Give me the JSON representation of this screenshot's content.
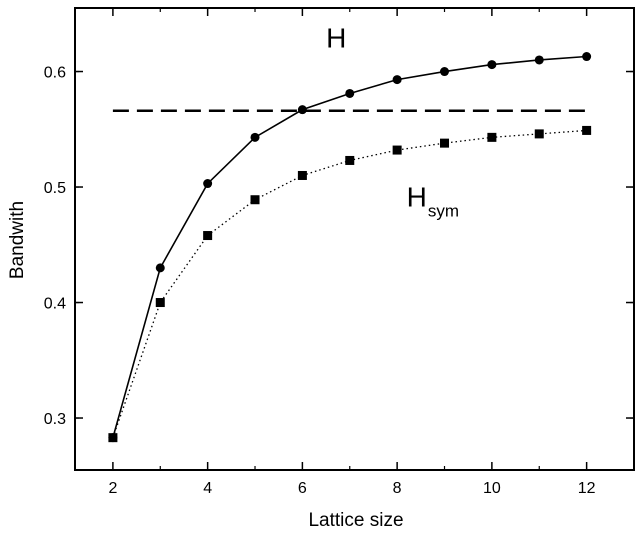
{
  "chart_data": {
    "type": "line",
    "title": "",
    "xlabel": "Lattice size",
    "ylabel": "Bandwith",
    "xlim": [
      1.2,
      13.0
    ],
    "ylim": [
      0.255,
      0.655
    ],
    "xticks": [
      2,
      4,
      6,
      8,
      10,
      12
    ],
    "xtick_labels": [
      "2",
      "4",
      "6",
      "8",
      "10",
      "12"
    ],
    "yticks": [
      0.3,
      0.4,
      0.5,
      0.6
    ],
    "ytick_labels": [
      "0.3",
      "0.4",
      "0.5",
      "0.6"
    ],
    "grid": false,
    "series": [
      {
        "marker": "circle",
        "line": "solid",
        "x": [
          2,
          3,
          4,
          5,
          6,
          7,
          8,
          9,
          10,
          11,
          12
        ],
        "y": [
          0.283,
          0.43,
          0.503,
          0.543,
          0.567,
          0.581,
          0.593,
          0.6,
          0.606,
          0.61,
          0.613
        ]
      },
      {
        "marker": "square",
        "line": "dotted",
        "x": [
          2,
          3,
          4,
          5,
          6,
          7,
          8,
          9,
          10,
          11,
          12
        ],
        "y": [
          0.283,
          0.4,
          0.458,
          0.489,
          0.51,
          0.523,
          0.532,
          0.538,
          0.543,
          0.546,
          0.549
        ]
      }
    ],
    "reference_line": {
      "style": "dashed",
      "y": 0.566,
      "x_range": [
        2,
        12
      ]
    },
    "annotations": [
      {
        "text": "H",
        "subscript": "",
        "x": 6.5,
        "y": 0.621
      },
      {
        "text": "H",
        "subscript": "sym",
        "x": 8.2,
        "y": 0.483
      }
    ]
  }
}
